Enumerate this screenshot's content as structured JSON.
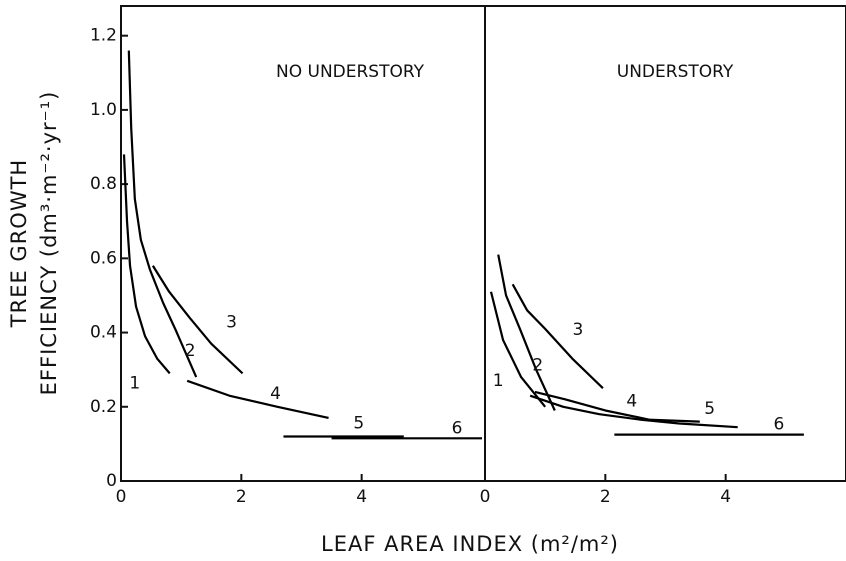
{
  "ylabel": [
    "TREE GROWTH",
    "EFFICIENCY (dm³·m⁻²·yr⁻¹)"
  ],
  "xlabel": "LEAF AREA INDEX (m²/m²)",
  "chart_data": [
    {
      "type": "line",
      "title": "NO UNDERSTORY",
      "xlim": [
        0,
        6.05
      ],
      "ylim": [
        0,
        1.28
      ],
      "xticks": [
        0,
        2,
        4
      ],
      "yticks": [
        0,
        0.2,
        0.4,
        0.6,
        0.8,
        {
          "value": 1.0,
          "label": "1.0"
        },
        1.2
      ],
      "series": [
        {
          "name": "1",
          "color": "#000000",
          "x": [
            0.05,
            0.1,
            0.15,
            0.25,
            0.4,
            0.6,
            0.81
          ],
          "values": [
            0.88,
            0.7,
            0.58,
            0.47,
            0.39,
            0.33,
            0.29
          ]
        },
        {
          "name": "2",
          "color": "#000000",
          "x": [
            0.13,
            0.17,
            0.23,
            0.33,
            0.48,
            0.7,
            0.9,
            1.25
          ],
          "values": [
            1.16,
            0.95,
            0.76,
            0.65,
            0.57,
            0.48,
            0.41,
            0.28
          ]
        },
        {
          "name": "3",
          "color": "#000000",
          "x": [
            0.53,
            0.8,
            1.14,
            1.5,
            2.02
          ],
          "values": [
            0.58,
            0.51,
            0.44,
            0.37,
            0.29
          ]
        },
        {
          "name": "4",
          "color": "#000000",
          "x": [
            1.1,
            1.8,
            2.6,
            3.45
          ],
          "values": [
            0.27,
            0.23,
            0.2,
            0.17
          ]
        },
        {
          "name": "5",
          "color": "#000000",
          "x": [
            2.7,
            4.7
          ],
          "values": [
            0.12,
            0.12
          ]
        },
        {
          "name": "6",
          "color": "#000000",
          "x": [
            3.5,
            6.0
          ],
          "values": [
            0.115,
            0.115
          ]
        }
      ]
    },
    {
      "type": "line",
      "title": "UNDERSTORY",
      "xlim": [
        0,
        6.0
      ],
      "ylim": [
        0,
        1.28
      ],
      "xticks": [
        0,
        2,
        4
      ],
      "series": [
        {
          "name": "1",
          "color": "#000000",
          "x": [
            0.1,
            0.3,
            0.6,
            1.0
          ],
          "values": [
            0.51,
            0.38,
            0.28,
            0.2
          ]
        },
        {
          "name": "2",
          "color": "#000000",
          "x": [
            0.22,
            0.35,
            0.58,
            0.85,
            1.16
          ],
          "values": [
            0.61,
            0.5,
            0.41,
            0.3,
            0.19
          ]
        },
        {
          "name": "3",
          "color": "#000000",
          "x": [
            0.46,
            0.7,
            1.0,
            1.45,
            1.96
          ],
          "values": [
            0.53,
            0.46,
            0.41,
            0.33,
            0.25
          ]
        },
        {
          "name": "4",
          "color": "#000000",
          "x": [
            0.83,
            1.33,
            2.0,
            2.74,
            3.57
          ],
          "values": [
            0.24,
            0.22,
            0.19,
            0.165,
            0.16
          ]
        },
        {
          "name": "5",
          "color": "#000000",
          "x": [
            0.75,
            1.3,
            1.9,
            2.6,
            3.23,
            4.2
          ],
          "values": [
            0.23,
            0.2,
            0.18,
            0.165,
            0.155,
            0.145
          ]
        },
        {
          "name": "6",
          "color": "#000000",
          "x": [
            2.15,
            5.3
          ],
          "values": [
            0.125,
            0.125
          ]
        }
      ]
    }
  ]
}
